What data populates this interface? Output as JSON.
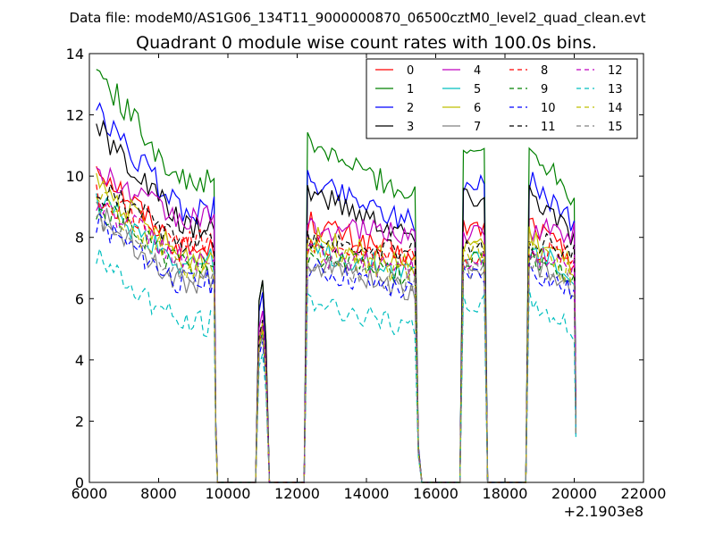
{
  "data_file_title": "Data file: modeM0/AS1G06_134T11_9000000870_06500cztM0_level2_quad_clean.evt",
  "chart_data": {
    "type": "line",
    "title": "Quadrant 0 module wise count rates with 100.0s bins.",
    "xlabel": "",
    "ylabel": "",
    "x_offset_label": "+2.1903e8",
    "xlim": [
      6000,
      22000
    ],
    "ylim": [
      0,
      14
    ],
    "x_ticks": [
      6000,
      8000,
      10000,
      12000,
      14000,
      16000,
      18000,
      20000,
      22000
    ],
    "y_ticks": [
      0,
      2,
      4,
      6,
      8,
      10,
      12,
      14
    ],
    "grid": false,
    "legend": {
      "placement": "top-right",
      "columns": 4
    },
    "segments": [
      {
        "start": 6200,
        "end": 9600
      },
      {
        "start": 10900,
        "end": 11100
      },
      {
        "start": 12300,
        "end": 15400
      },
      {
        "start": 16800,
        "end": 17400
      },
      {
        "start": 18700,
        "end": 20000
      }
    ],
    "gap_points": [
      {
        "x": 9650,
        "y": 0
      },
      {
        "x": 10000,
        "y": 0
      },
      {
        "x": 10800,
        "y": 0
      },
      {
        "x": 11200,
        "y": 0
      },
      {
        "x": 12200,
        "y": 0
      },
      {
        "x": 15500,
        "y": 0
      },
      {
        "x": 16000,
        "y": 0
      },
      {
        "x": 16700,
        "y": 0
      },
      {
        "x": 17500,
        "y": 0
      },
      {
        "x": 18000,
        "y": 0
      },
      {
        "x": 18600,
        "y": 0
      }
    ],
    "series": [
      {
        "name": "0",
        "color": "#ff0000",
        "dash": "solid",
        "level_start": 10.4,
        "level_end": 7.6,
        "short_peak": 5.2,
        "end_drop": 1.8
      },
      {
        "name": "1",
        "color": "#008000",
        "dash": "solid",
        "level_start": 13.5,
        "level_end": 9.8,
        "short_peak": 6.6,
        "end_drop": 2.0
      },
      {
        "name": "2",
        "color": "#0000ff",
        "dash": "solid",
        "level_start": 12.1,
        "level_end": 8.9,
        "short_peak": 6.2,
        "end_drop": 2.0
      },
      {
        "name": "3",
        "color": "#000000",
        "dash": "solid",
        "level_start": 11.6,
        "level_end": 8.4,
        "short_peak": 6.6,
        "end_drop": 1.8
      },
      {
        "name": "4",
        "color": "#bf00bf",
        "dash": "solid",
        "level_start": 10.1,
        "level_end": 8.6,
        "short_peak": 5.6,
        "end_drop": 1.8
      },
      {
        "name": "5",
        "color": "#00bfbf",
        "dash": "solid",
        "level_start": 9.2,
        "level_end": 7.2,
        "short_peak": 5.0,
        "end_drop": 1.6
      },
      {
        "name": "6",
        "color": "#bfbf00",
        "dash": "solid",
        "level_start": 9.8,
        "level_end": 7.4,
        "short_peak": 5.2,
        "end_drop": 1.7
      },
      {
        "name": "7",
        "color": "#808080",
        "dash": "solid",
        "level_start": 8.8,
        "level_end": 6.6,
        "short_peak": 4.8,
        "end_drop": 1.6
      },
      {
        "name": "8",
        "color": "#ff0000",
        "dash": "dashed",
        "level_start": 9.3,
        "level_end": 7.8,
        "short_peak": 5.0,
        "end_drop": 1.7
      },
      {
        "name": "9",
        "color": "#008000",
        "dash": "dashed",
        "level_start": 9.0,
        "level_end": 7.1,
        "short_peak": 4.9,
        "end_drop": 1.6
      },
      {
        "name": "10",
        "color": "#0000ff",
        "dash": "dashed",
        "level_start": 8.5,
        "level_end": 6.5,
        "short_peak": 4.6,
        "end_drop": 1.5
      },
      {
        "name": "11",
        "color": "#000000",
        "dash": "dashed",
        "level_start": 9.6,
        "level_end": 7.9,
        "short_peak": 5.3,
        "end_drop": 1.7
      },
      {
        "name": "12",
        "color": "#bf00bf",
        "dash": "dashed",
        "level_start": 9.1,
        "level_end": 7.3,
        "short_peak": 5.1,
        "end_drop": 1.6
      },
      {
        "name": "13",
        "color": "#00bfbf",
        "dash": "dashed",
        "level_start": 7.3,
        "level_end": 5.2,
        "short_peak": 4.2,
        "end_drop": 1.4
      },
      {
        "name": "14",
        "color": "#bfbf00",
        "dash": "dashed",
        "level_start": 9.4,
        "level_end": 7.0,
        "short_peak": 5.0,
        "end_drop": 1.6
      },
      {
        "name": "15",
        "color": "#808080",
        "dash": "dashed",
        "level_start": 8.7,
        "level_end": 6.9,
        "short_peak": 4.8,
        "end_drop": 1.5
      }
    ]
  }
}
